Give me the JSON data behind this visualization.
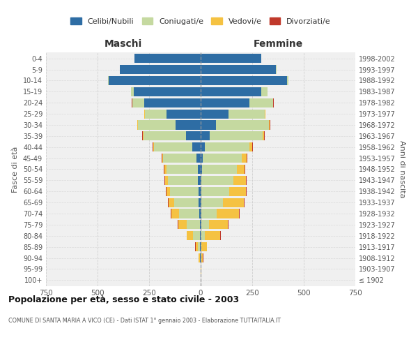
{
  "age_groups": [
    "100+",
    "95-99",
    "90-94",
    "85-89",
    "80-84",
    "75-79",
    "70-74",
    "65-69",
    "60-64",
    "55-59",
    "50-54",
    "45-49",
    "40-44",
    "35-39",
    "30-34",
    "25-29",
    "20-24",
    "15-19",
    "10-14",
    "5-9",
    "0-4"
  ],
  "birth_years": [
    "≤ 1902",
    "1903-1907",
    "1908-1912",
    "1913-1917",
    "1918-1922",
    "1923-1927",
    "1928-1932",
    "1933-1937",
    "1938-1942",
    "1943-1947",
    "1948-1952",
    "1953-1957",
    "1958-1962",
    "1963-1967",
    "1968-1972",
    "1973-1977",
    "1978-1982",
    "1983-1987",
    "1988-1992",
    "1993-1997",
    "1998-2002"
  ],
  "males": {
    "celibi": [
      0,
      0,
      2,
      2,
      3,
      5,
      8,
      10,
      10,
      12,
      15,
      20,
      40,
      70,
      120,
      165,
      275,
      325,
      445,
      392,
      322
    ],
    "coniugati": [
      0,
      0,
      3,
      10,
      35,
      62,
      98,
      118,
      138,
      148,
      152,
      162,
      188,
      208,
      185,
      105,
      55,
      12,
      3,
      1,
      0
    ],
    "vedovi": [
      0,
      0,
      4,
      12,
      28,
      40,
      36,
      28,
      18,
      12,
      8,
      4,
      3,
      3,
      2,
      2,
      1,
      0,
      0,
      0,
      0
    ],
    "divorziati": [
      0,
      0,
      1,
      2,
      2,
      3,
      3,
      4,
      4,
      4,
      3,
      3,
      3,
      3,
      2,
      2,
      2,
      0,
      0,
      0,
      0
    ]
  },
  "females": {
    "nubili": [
      0,
      0,
      1,
      1,
      1,
      2,
      3,
      4,
      5,
      5,
      6,
      10,
      20,
      45,
      75,
      135,
      235,
      295,
      420,
      365,
      295
    ],
    "coniugate": [
      0,
      0,
      2,
      4,
      20,
      40,
      75,
      105,
      135,
      155,
      170,
      190,
      215,
      255,
      255,
      175,
      115,
      28,
      6,
      2,
      0
    ],
    "vedove": [
      0,
      2,
      8,
      25,
      75,
      90,
      108,
      100,
      78,
      58,
      38,
      22,
      14,
      8,
      5,
      3,
      2,
      1,
      0,
      0,
      0
    ],
    "divorziate": [
      0,
      0,
      1,
      2,
      2,
      3,
      3,
      4,
      4,
      4,
      3,
      3,
      3,
      3,
      2,
      2,
      2,
      0,
      0,
      0,
      0
    ]
  },
  "colors": {
    "celibi": "#2E6DA4",
    "coniugati": "#C5D9A0",
    "vedovi": "#F5C242",
    "divorziati": "#C0392B"
  },
  "legend_labels": [
    "Celibi/Nubili",
    "Coniugati/e",
    "Vedovi/e",
    "Divorziati/e"
  ],
  "xlabel_left": "Maschi",
  "xlabel_right": "Femmine",
  "ylabel_left": "Fasce di età",
  "ylabel_right": "Anni di nascita",
  "title": "Popolazione per età, sesso e stato civile - 2003",
  "subtitle": "COMUNE DI SANTA MARIA A VICO (CE) - Dati ISTAT 1° gennaio 2003 - Elaborazione TUTTAITALIA.IT",
  "xlim": 750,
  "bg_color": "#ffffff",
  "plot_bg": "#f0f0f0",
  "grid_color": "#cccccc"
}
